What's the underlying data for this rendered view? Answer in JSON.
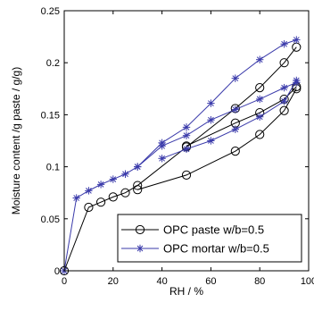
{
  "chart_data": {
    "type": "line",
    "xlabel": "RH / %",
    "ylabel": "Moisture content /g paste / g/g)",
    "xlim": [
      0,
      100
    ],
    "ylim": [
      0,
      0.25
    ],
    "x_ticks": [
      0,
      20,
      40,
      60,
      80,
      100
    ],
    "y_ticks": [
      0,
      0.05,
      0.1,
      0.15,
      0.2,
      0.25
    ],
    "x_tick_labels": [
      "0",
      "20",
      "40",
      "60",
      "80",
      "100"
    ],
    "y_tick_labels": [
      "0",
      "0.05",
      "0.1",
      "0.15",
      "0.2",
      "0.25"
    ],
    "grid": false,
    "legend_position": "bottom-right",
    "series": [
      {
        "name": "OPC paste w/b=0.5",
        "color": "#000000",
        "marker": "circle",
        "loops": [
          {
            "x": [
              0,
              10,
              15,
              20,
              25,
              30,
              50,
              70,
              80,
              90,
              95
            ],
            "y": [
              0,
              0.061,
              0.066,
              0.071,
              0.075,
              0.082,
              0.119,
              0.156,
              0.176,
              0.2,
              0.215
            ]
          },
          {
            "x": [
              30,
              50,
              70,
              80,
              90,
              95
            ],
            "y": [
              0.078,
              0.092,
              0.115,
              0.131,
              0.154,
              0.175
            ]
          },
          {
            "x": [
              50,
              70,
              80,
              90,
              95
            ],
            "y": [
              0.12,
              0.142,
              0.152,
              0.165,
              0.177
            ]
          }
        ]
      },
      {
        "name": "OPC mortar w/b=0.5",
        "color": "#3a3aaa",
        "marker": "star",
        "loops": [
          {
            "x": [
              0,
              5,
              10,
              15,
              20,
              25,
              30,
              40,
              50,
              60,
              70,
              80,
              90,
              95
            ],
            "y": [
              0,
              0.07,
              0.077,
              0.083,
              0.088,
              0.093,
              0.1,
              0.123,
              0.138,
              0.161,
              0.185,
              0.203,
              0.218,
              0.222
            ]
          },
          {
            "x": [
              40,
              50,
              60,
              70,
              80,
              90,
              95
            ],
            "y": [
              0.108,
              0.117,
              0.125,
              0.136,
              0.148,
              0.163,
              0.183
            ]
          },
          {
            "x": [
              30,
              40,
              50,
              60,
              70,
              80,
              90,
              95
            ],
            "y": [
              0.1,
              0.12,
              0.13,
              0.145,
              0.155,
              0.165,
              0.176,
              0.181
            ]
          }
        ]
      }
    ]
  }
}
